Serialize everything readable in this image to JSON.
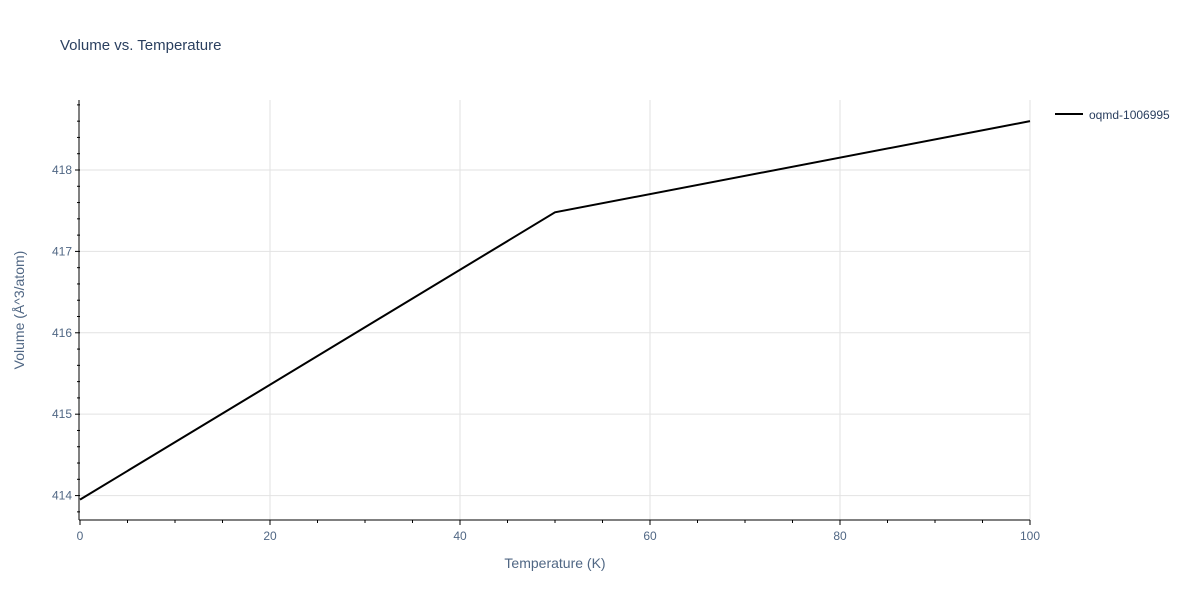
{
  "chart_data": {
    "type": "line",
    "title": "Volume vs. Temperature",
    "xlabel": "Temperature (K)",
    "ylabel": "Volume (Å^3/atom)",
    "xlim": [
      0,
      100
    ],
    "ylim": [
      413.7,
      418.86
    ],
    "x_ticks": [
      0,
      20,
      40,
      60,
      80,
      100
    ],
    "y_ticks": [
      414,
      415,
      416,
      417,
      418
    ],
    "grid": true,
    "legend_position": "top-right",
    "series": [
      {
        "name": "oqmd-1006995",
        "color": "#000000",
        "x": [
          0,
          50,
          100
        ],
        "y": [
          413.95,
          417.48,
          418.6
        ]
      }
    ]
  }
}
